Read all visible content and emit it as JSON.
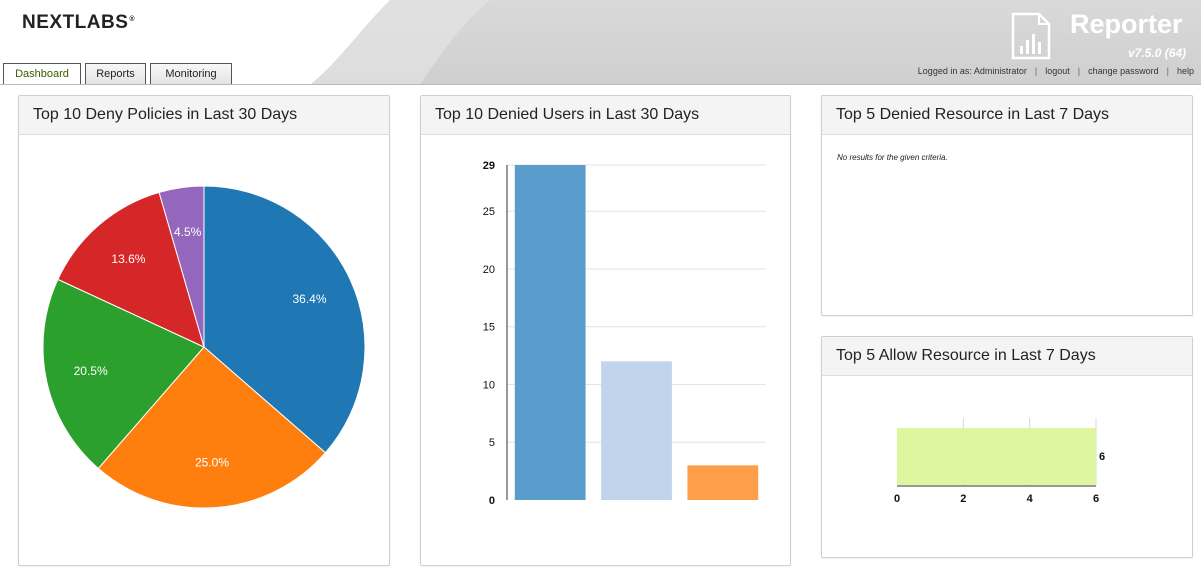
{
  "header": {
    "logo": "NEXTLABS",
    "app_title": "Reporter",
    "app_version": "v7.5.0 (64)",
    "tabs": [
      {
        "label": "Dashboard",
        "active": true
      },
      {
        "label": "Reports",
        "active": false
      },
      {
        "label": "Monitoring",
        "active": false
      }
    ],
    "user": {
      "logged_in_label": "Logged in as: Administrator",
      "logout": "logout",
      "change_password": "change password",
      "help": "help"
    }
  },
  "panels": {
    "deny_policies": {
      "title": "Top 10 Deny Policies in Last 30 Days"
    },
    "denied_users": {
      "title": "Top 10 Denied Users in Last 30 Days"
    },
    "denied_resource": {
      "title": "Top 5 Denied Resource in Last 7 Days",
      "message": "No results for the given criteria."
    },
    "allow_resource": {
      "title": "Top 5 Allow Resource in Last 7 Days"
    }
  },
  "chart_data": [
    {
      "type": "pie",
      "slices": [
        {
          "label": "36.4%",
          "value": 36.4,
          "color": "#1f77b4"
        },
        {
          "label": "25.0%",
          "value": 25.0,
          "color": "#ff7f0e"
        },
        {
          "label": "20.5%",
          "value": 20.5,
          "color": "#2ca02c"
        },
        {
          "label": "13.6%",
          "value": 13.6,
          "color": "#d62728"
        },
        {
          "label": "4.5%",
          "value": 4.5,
          "color": "#9467bd"
        }
      ]
    },
    {
      "type": "bar",
      "values": [
        29,
        12,
        3
      ],
      "colors": [
        "#5a9dcd",
        "#c1d4ec",
        "#ff9e4a"
      ],
      "ylim": [
        0,
        29
      ],
      "yticks": [
        0,
        5,
        10,
        15,
        20,
        25,
        29
      ]
    },
    {
      "type": "bar",
      "orientation": "horizontal",
      "values": [
        6
      ],
      "value_labels": [
        "6"
      ],
      "colors": [
        "#dbf59a"
      ],
      "xlim": [
        0,
        6
      ],
      "xticks": [
        0,
        2,
        4,
        6
      ]
    }
  ]
}
